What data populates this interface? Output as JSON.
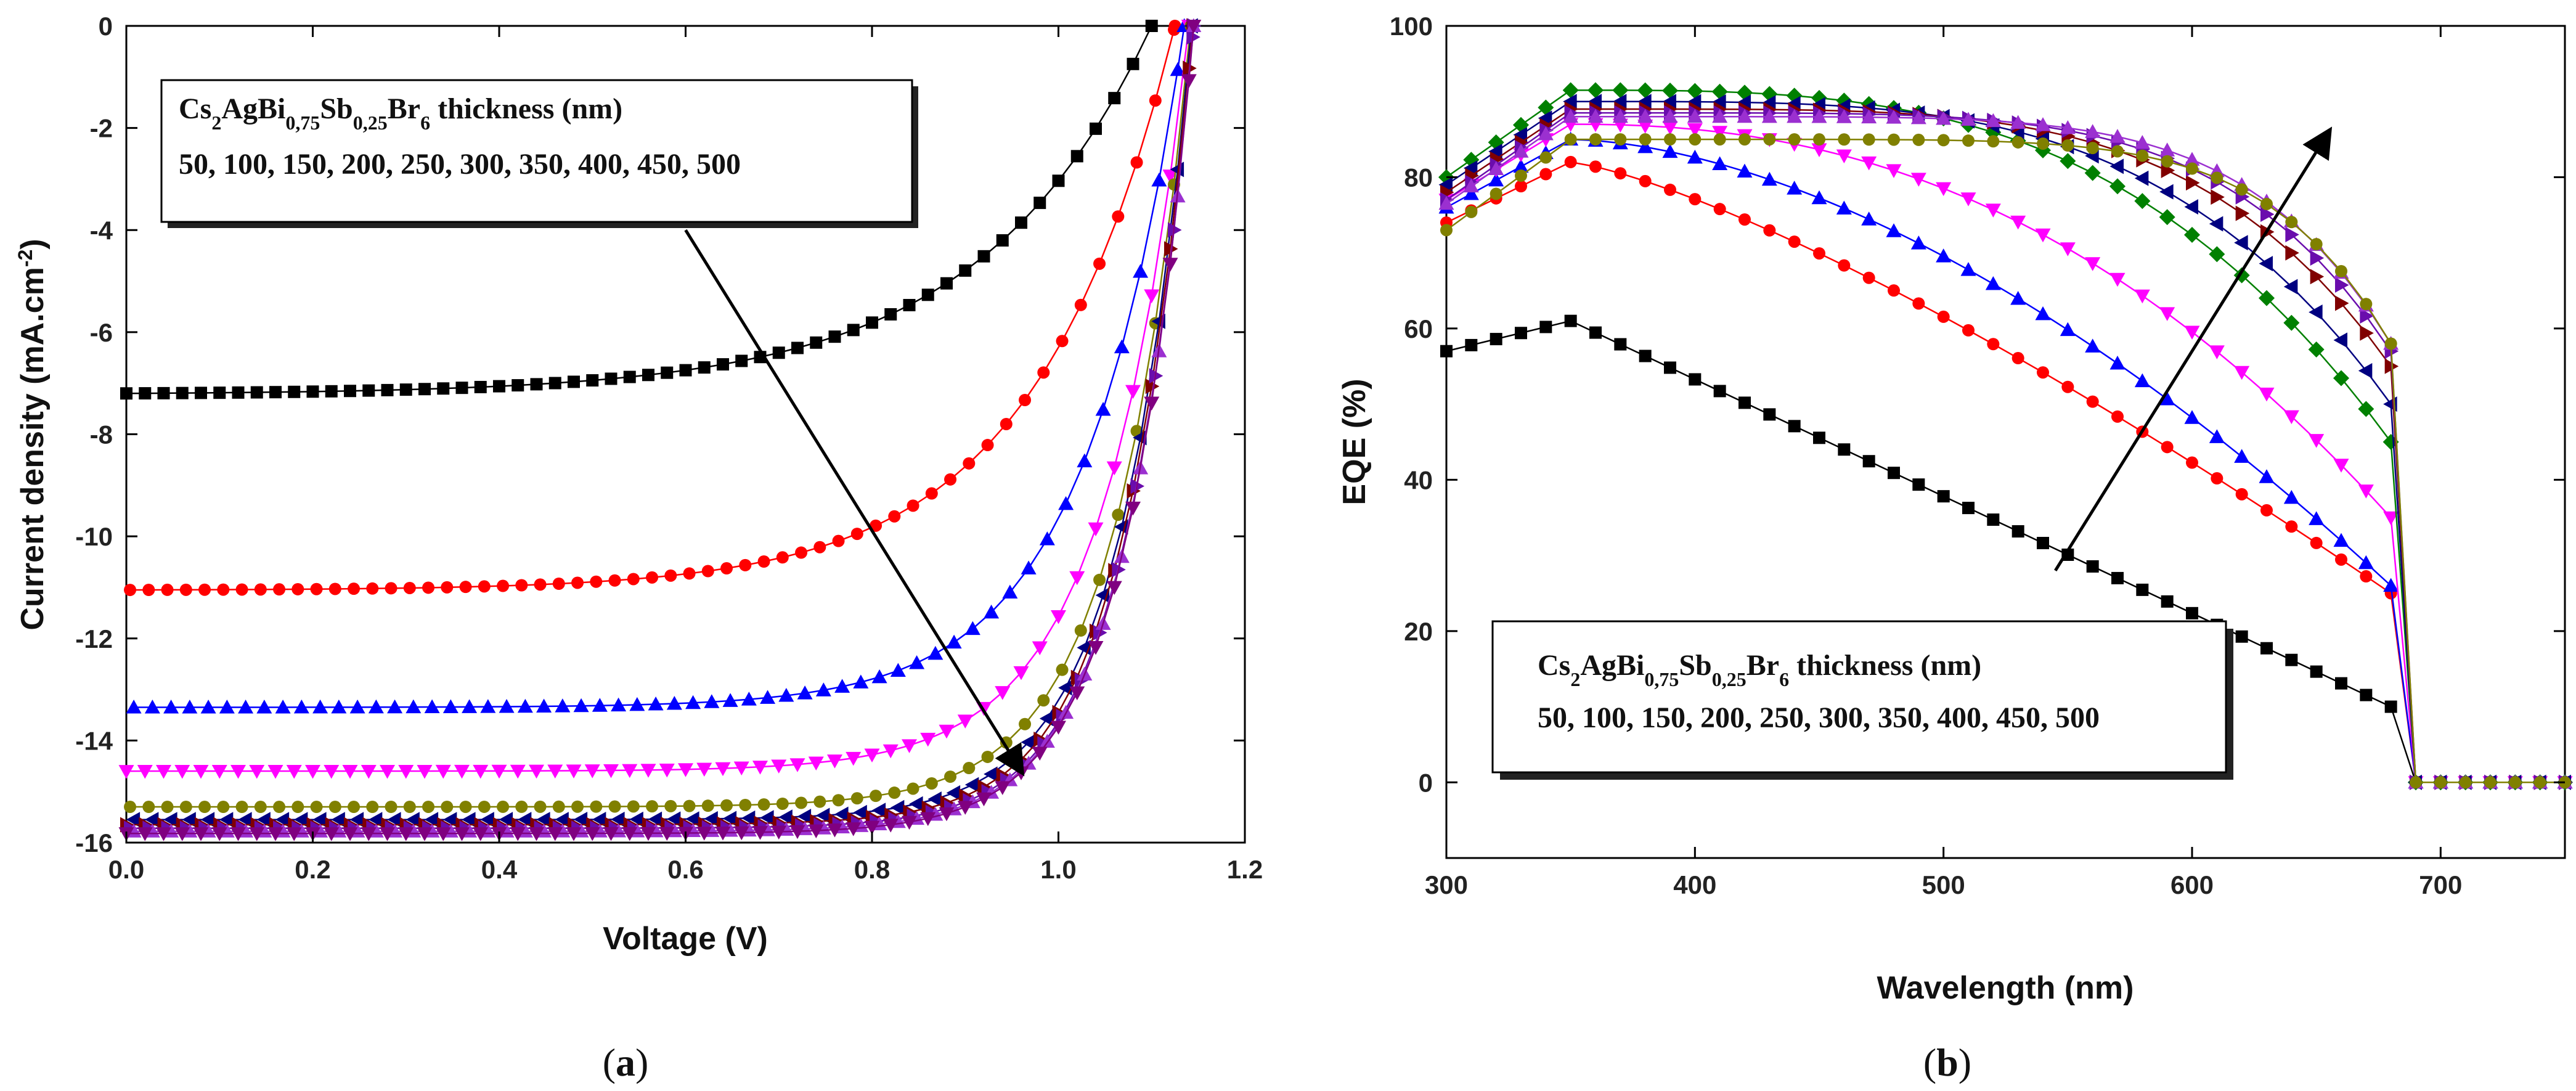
{
  "chart_data": [
    {
      "panel": "(a)",
      "panel_letter": "a",
      "type": "line",
      "xlabel": "Voltage (V)",
      "ylabel": "Current density (mA.cm",
      "ylabel_sup": "-2",
      "ylabel_close": ")",
      "xlim": [
        0,
        1.2
      ],
      "ylim": [
        -16,
        0
      ],
      "xticks": [
        "0.0",
        "0.2",
        "0.4",
        "0.6",
        "0.8",
        "1.0",
        "1.2"
      ],
      "yticks": [
        "0",
        "-2",
        "-4",
        "-6",
        "-8",
        "-10",
        "-12",
        "-14",
        "-16"
      ],
      "legend_title": {
        "base": "Cs",
        "sub1": "2",
        "mid1": "AgBi",
        "sub2": "0,75",
        "mid2": "Sb",
        "sub3": "0,25",
        "mid3": "Br",
        "sub4": "6",
        "tail": " thickness (nm)"
      },
      "legend_values": "50, 100, 150, 200, 250, 300, 350, 400, 450, 500",
      "series": [
        {
          "name": "50",
          "color": "#000000",
          "marker": "square",
          "jsc": -7.2,
          "voc": 1.1,
          "slope": 0.75
        },
        {
          "name": "100",
          "color": "#ff0000",
          "marker": "circle",
          "jsc": -11.05,
          "voc": 1.125,
          "slope": 0.95
        },
        {
          "name": "150",
          "color": "#0000ff",
          "marker": "triangle-up",
          "jsc": -13.35,
          "voc": 1.135,
          "slope": 1.35
        },
        {
          "name": "200",
          "color": "#ff00ff",
          "marker": "triangle-down",
          "jsc": -14.6,
          "voc": 1.14,
          "slope": 1.6
        },
        {
          "name": "250",
          "color": "#808000",
          "marker": "circle",
          "jsc": -15.3,
          "voc": 1.142,
          "slope": 1.8
        },
        {
          "name": "300",
          "color": "#000080",
          "marker": "triangle-left",
          "jsc": -15.55,
          "voc": 1.143,
          "slope": 1.9
        },
        {
          "name": "350",
          "color": "#800000",
          "marker": "triangle-right",
          "jsc": -15.65,
          "voc": 1.144,
          "slope": 1.95
        },
        {
          "name": "400",
          "color": "#6a0dad",
          "marker": "triangle-right",
          "jsc": -15.72,
          "voc": 1.145,
          "slope": 2.0
        },
        {
          "name": "450",
          "color": "#9b30d0",
          "marker": "triangle-up",
          "jsc": -15.78,
          "voc": 1.145,
          "slope": 2.0
        },
        {
          "name": "500",
          "color": "#800080",
          "marker": "triangle-down",
          "jsc": -15.82,
          "voc": 1.145,
          "slope": 2.0
        }
      ],
      "arrow": {
        "from": [
          0.6,
          -4
        ],
        "to": [
          0.96,
          -14.6
        ]
      }
    },
    {
      "panel": "(b)",
      "panel_letter": "b",
      "type": "line",
      "xlabel": "Wavelength (nm)",
      "ylabel": "EQE (%)",
      "xlim": [
        300,
        750
      ],
      "ylim": [
        -10,
        100
      ],
      "xticks": [
        "300",
        "400",
        "500",
        "600",
        "700"
      ],
      "yticks": [
        "0",
        "20",
        "40",
        "60",
        "80",
        "100"
      ],
      "legend_title": {
        "base": "Cs",
        "sub1": "2",
        "mid1": "AgBi",
        "sub2": "0,75",
        "mid2": "Sb",
        "sub3": "0,25",
        "mid3": "Br",
        "sub4": "6",
        "tail": " thickness (nm)"
      },
      "legend_values": "50, 100, 150, 200, 250, 300, 350, 400, 450, 500",
      "series": [
        {
          "name": "50",
          "color": "#000000",
          "marker": "square",
          "start": 57,
          "peak": 61,
          "end": 10,
          "curv": 1.0
        },
        {
          "name": "100",
          "color": "#ff0000",
          "marker": "circle",
          "start": 74,
          "peak": 82,
          "end": 25,
          "curv": 1.3
        },
        {
          "name": "150",
          "color": "#0000ff",
          "marker": "triangle-up",
          "start": 76,
          "peak": 85,
          "end": 26,
          "curv": 1.7
        },
        {
          "name": "200",
          "color": "#ff00ff",
          "marker": "triangle-down",
          "start": 77,
          "peak": 87,
          "end": 35,
          "curv": 2.3
        },
        {
          "name": "250",
          "color": "#008000",
          "marker": "diamond",
          "start": 80,
          "peak": 91.5,
          "end": 45,
          "curv": 3.2
        },
        {
          "name": "300",
          "color": "#000080",
          "marker": "triangle-left",
          "start": 79,
          "peak": 90,
          "end": 50,
          "curv": 3.8
        },
        {
          "name": "350",
          "color": "#800000",
          "marker": "triangle-right",
          "start": 78,
          "peak": 89,
          "end": 55,
          "curv": 4.5
        },
        {
          "name": "400",
          "color": "#6a0dad",
          "marker": "triangle-right",
          "start": 77,
          "peak": 88.5,
          "end": 57,
          "curv": 5.2
        },
        {
          "name": "450",
          "color": "#9b30d0",
          "marker": "triangle-up",
          "start": 76.5,
          "peak": 88,
          "end": 58,
          "curv": 6.0
        },
        {
          "name": "500",
          "color": "#808000",
          "marker": "circle",
          "start": 73,
          "peak": 85,
          "end": 58,
          "curv": 7.0
        }
      ],
      "arrow": {
        "from": [
          545,
          28
        ],
        "to": [
          655,
          86
        ]
      }
    }
  ]
}
